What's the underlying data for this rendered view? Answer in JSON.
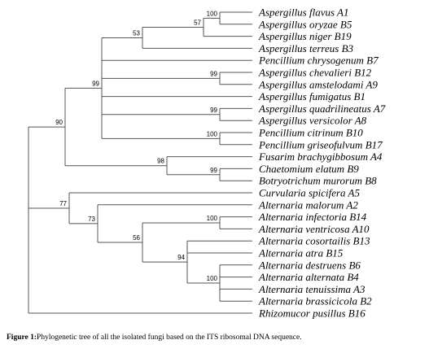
{
  "tree": {
    "children": [
      {
        "support": 90,
        "children": [
          {
            "support": 99,
            "children": [
              {
                "support": 53,
                "children": [
                  {
                    "support": 57,
                    "children": [
                      {
                        "support": 100,
                        "children": [
                          {
                            "label": "Aspergillus flavus A1"
                          },
                          {
                            "label": "Aspergillus oryzae B5"
                          }
                        ]
                      },
                      {
                        "label": "Aspergillus niger B19"
                      }
                    ]
                  },
                  {
                    "label": "Aspergillus terreus B3"
                  }
                ]
              },
              {
                "label": "Pencillium chrysogenum B7"
              },
              {
                "support": 99,
                "children": [
                  {
                    "label": "Aspergillus chevalieri B12"
                  },
                  {
                    "label": "Aspergillus amstelodami A9"
                  }
                ]
              },
              {
                "label": "Aspergillus fumigatus B1"
              },
              {
                "support": 99,
                "children": [
                  {
                    "label": "Aspergillus quadrilineatus A7"
                  },
                  {
                    "label": "Aspergillus versicolor A8"
                  }
                ]
              },
              {
                "support": 100,
                "children": [
                  {
                    "label": "Pencillium citrinum B10"
                  },
                  {
                    "label": "Pencillium griseofulvum B17"
                  }
                ]
              }
            ]
          },
          {
            "support": 98,
            "children": [
              {
                "label": "Fusarim brachygibbosum A4"
              },
              {
                "support": 99,
                "children": [
                  {
                    "label": "Chaetomium elatum B9"
                  },
                  {
                    "label": "Botryotrichum murorum B8"
                  }
                ]
              }
            ]
          }
        ]
      },
      {
        "support": 77,
        "children": [
          {
            "label": "Curvularia spicifera A5"
          },
          {
            "support": 73,
            "children": [
              {
                "label": "Alternaria malorum A2"
              },
              {
                "support": 56,
                "children": [
                  {
                    "support": 100,
                    "children": [
                      {
                        "label": "Alternaria infectoria B14"
                      },
                      {
                        "label": "Alternaria ventricosa A10"
                      }
                    ]
                  },
                  {
                    "support": 94,
                    "children": [
                      {
                        "label": "Alternaria cosortailis B13"
                      },
                      {
                        "label": "Alternaria atra B15"
                      },
                      {
                        "support": 100,
                        "children": [
                          {
                            "label": "Alternaria destruens B6"
                          },
                          {
                            "label": "Alternaria alternata B4"
                          },
                          {
                            "label": "Alternaria tenuissima A3"
                          },
                          {
                            "label": "Alternaria brassicicola B2"
                          }
                        ]
                      }
                    ]
                  }
                ]
              }
            ]
          }
        ]
      },
      {
        "label": "Rhizomucor pusillus B16"
      }
    ]
  },
  "caption": {
    "label": "Figure 1:",
    "text": "Phylogenetic tree of all the isolated fungi based on the ITS ribosomal DNA sequence."
  }
}
